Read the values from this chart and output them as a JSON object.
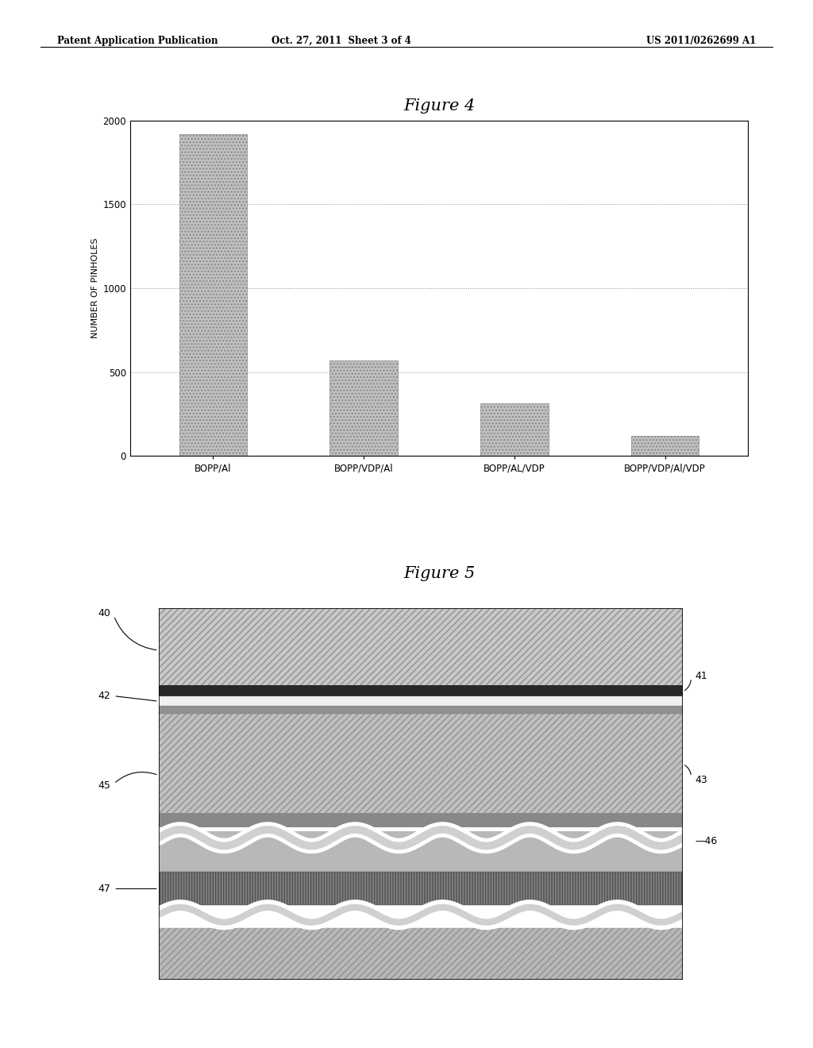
{
  "header_left": "Patent Application Publication",
  "header_center": "Oct. 27, 2011  Sheet 3 of 4",
  "header_right": "US 2011/0262699 A1",
  "fig4_title": "Figure 4",
  "fig4_categories": [
    "BOPP/Al",
    "BOPP/VDP/Al",
    "BOPP/AL/VDP",
    "BOPP/VDP/Al/VDP"
  ],
  "fig4_values": [
    1920,
    570,
    315,
    120
  ],
  "fig4_ylabel": "NUMBER OF PINHOLES",
  "fig4_ylim": [
    0,
    2000
  ],
  "fig4_yticks": [
    0,
    500,
    1000,
    1500,
    2000
  ],
  "fig4_bar_color": "#c0c0c0",
  "fig5_title": "Figure 5",
  "fig5_labels": [
    "40",
    "41",
    "42",
    "43",
    "45",
    "46",
    "47"
  ],
  "background_color": "#ffffff",
  "layer_top_color": "#b0b0b0",
  "layer_dark_line_color": "#2a2a2a",
  "layer_light_color": "#e8e8e8",
  "layer_mid_color": "#c0c0c0",
  "layer_stripe_color": "#909090",
  "layer_dense_color": "#808080",
  "layer_bottom_color": "#b0b0b0"
}
